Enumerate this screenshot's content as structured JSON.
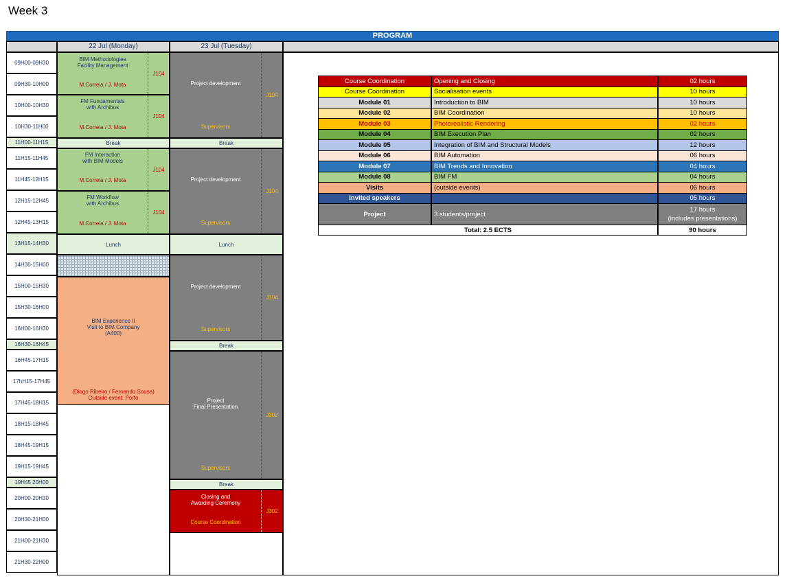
{
  "sheet_title": "Week 3",
  "program_title": "PROGRAM",
  "days": [
    "22 Jul (Monday)",
    "23 Jul (Tuesday)"
  ],
  "times": [
    "09H00-09H30",
    "09H30-10H00",
    "10H00-10H30",
    "10H30-11H00",
    "11H00-11H15",
    "11H15-11H45",
    "11H45-12H15",
    "12H15-12H45",
    "12H45-13H15",
    "13H15-14H30",
    "14H30-15H00",
    "15H00-15H30",
    "15H30-16H00",
    "16H00-16H30",
    "16H30-16H45",
    "16H45-17H15",
    "17hH15-17H45",
    "17H45-18H15",
    "18H15-18H45",
    "18H45-19H15",
    "19H15-19H45",
    "19H45 20H00",
    "20H00-20H30",
    "20H30-21H00",
    "21H00-21H30",
    "21H30-22H00"
  ],
  "monday": {
    "s1": {
      "title1": "BIM Methodologies",
      "title2": "Facility Management",
      "people": "M.Correia / J. Mota",
      "room": "J104"
    },
    "s2": {
      "title1": "FM Fundamentals",
      "title2": "with Archibus",
      "people": "M.Correia / J. Mota",
      "room": "J104"
    },
    "break1": "Break",
    "s3": {
      "title1": "FM Interaction",
      "title2": "with BIM Models",
      "people": "M.Correia / J. Mota",
      "room": "J104"
    },
    "s4": {
      "title1": "FM Workflow",
      "title2": "with Archibus",
      "people": "M.Correia / J. Mota",
      "room": "J104"
    },
    "lunch": "Lunch",
    "visit": {
      "line1": "BIM Experience II",
      "line2": "Visit to BIM Company",
      "line3": "(A400)",
      "people": "(Diogo Ribeiro / Fernando Sousa)",
      "note": "Outside event: Porto"
    }
  },
  "tuesday": {
    "p1": {
      "title": "Project development",
      "who": "Supervisors",
      "room": "J104"
    },
    "break1": "Break",
    "p2": {
      "title": "Project development",
      "who": "Supervisors",
      "room": "J104"
    },
    "lunch": "Lunch",
    "p3": {
      "title": "Project development",
      "who": "Supervisors",
      "room": "J104"
    },
    "break2": "Break",
    "p4": {
      "title1": "Project",
      "title2": "Final Presentation",
      "who": "Supervisors",
      "room": "J302"
    },
    "break3": "Break",
    "closing": {
      "title1": "Closing and",
      "title2": "Awarding Ceremony",
      "who": "Course Coordination",
      "room": "J302"
    }
  },
  "summary": {
    "rows": [
      {
        "module": "Course Coordination",
        "desc": "Opening and Closing",
        "hours": "02 hours",
        "bg": "#c00000",
        "fg": "#ffffff"
      },
      {
        "module": "Course Coordination",
        "desc": "Socialisation events",
        "hours": "10 hours",
        "bg": "#ffff00",
        "fg": "#000000"
      },
      {
        "module": "Module 01",
        "desc": "Introduction to BIM",
        "hours": "10 hours",
        "bg": "#d9d9d9",
        "fg": "#000000"
      },
      {
        "module": "Module 02",
        "desc": "BIM Coordination",
        "hours": "10 hours",
        "bg": "#ffe699",
        "fg": "#000000"
      },
      {
        "module": "Module 03",
        "desc": "Photorealistic Rendering",
        "hours": "02 hours",
        "bg": "#ffc000",
        "fg": "#c00000"
      },
      {
        "module": "Module 04",
        "desc": "BIM Execution Plan",
        "hours": "02 hours",
        "bg": "#70ad47",
        "fg": "#000000"
      },
      {
        "module": "Module 05",
        "desc": "Integration of BIM and Structural Models",
        "hours": "12 hours",
        "bg": "#b4c6e7",
        "fg": "#000000"
      },
      {
        "module": "Module 06",
        "desc": "BIM Automation",
        "hours": "06 hours",
        "bg": "#fce4d6",
        "fg": "#000000"
      },
      {
        "module": "Module 07",
        "desc": "BIM Trends and Innovation",
        "hours": "04 hours",
        "bg": "#2e75b6",
        "fg": "#ffffff"
      },
      {
        "module": "Module 08",
        "desc": "BIM FM",
        "hours": "04 hours",
        "bg": "#a9d08e",
        "fg": "#000000"
      },
      {
        "module": "Visits",
        "desc": "(outside events)",
        "hours": "06 hours",
        "bg": "#f4b084",
        "fg": "#000000"
      },
      {
        "module": "Invited speakers",
        "desc": "",
        "hours": "05 hours",
        "bg": "#2f5597",
        "fg": "#ffffff"
      }
    ],
    "project": {
      "module": "Project",
      "desc": "3 students/project",
      "hours1": "17 hours",
      "hours2": "(includes presentations)"
    },
    "total_label": "Total: 2.5 ECTS",
    "total_hours": "90 hours"
  }
}
